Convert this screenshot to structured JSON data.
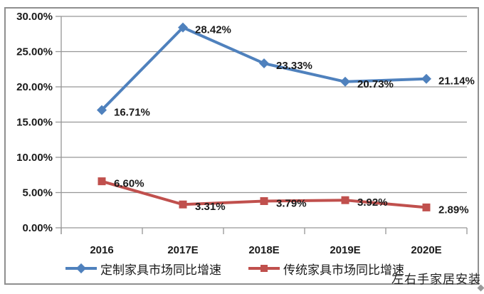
{
  "chart_data": {
    "type": "line",
    "title": "",
    "categories": [
      "2016",
      "2017E",
      "2018E",
      "2019E",
      "2020E"
    ],
    "series": [
      {
        "name": "定制家具市场同比增速",
        "values": [
          16.71,
          28.42,
          23.33,
          20.73,
          21.14
        ],
        "labels": [
          "16.71%",
          "28.42%",
          "23.33%",
          "20.73%",
          "21.14%"
        ],
        "color": "#4F81BD",
        "marker": "diamond"
      },
      {
        "name": "传统家具市场同比增速",
        "values": [
          6.6,
          3.31,
          3.79,
          3.92,
          2.89
        ],
        "labels": [
          "6.60%",
          "3.31%",
          "3.79%",
          "3.92%",
          "2.89%"
        ],
        "color": "#C0504D",
        "marker": "square"
      }
    ],
    "xlabel": "",
    "ylabel": "",
    "ylim": [
      0,
      30
    ],
    "ytick_step": 5,
    "ytick_labels": [
      "0.00%",
      "5.00%",
      "10.00%",
      "15.00%",
      "20.00%",
      "25.00%",
      "30.00%"
    ],
    "grid": true,
    "legend_position": "bottom",
    "axis_color": "#969696",
    "text_color": "#1a1a1a"
  },
  "watermark": "左右手家居安装"
}
